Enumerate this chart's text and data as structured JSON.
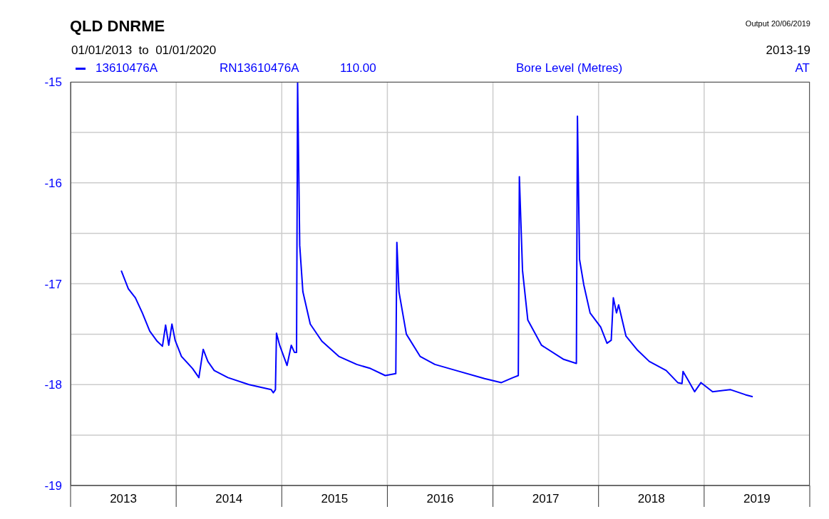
{
  "chart_data": {
    "type": "line",
    "title": "QLD DNRME",
    "subtitle": "01/01/2013  to  01/01/2020",
    "annotations": [
      "Output 20/06/2019",
      "2013-19",
      "RN13610476A",
      "110.00",
      "Bore Level (Metres)",
      "AT"
    ],
    "x": [
      2013.48,
      2013.547,
      2013.614,
      2013.68,
      2013.75,
      2013.82,
      2013.87,
      2013.9,
      2013.93,
      2013.96,
      2013.99,
      2014.05,
      2014.155,
      2014.215,
      2014.256,
      2014.3,
      2014.36,
      2014.49,
      2014.69,
      2014.9,
      2014.92,
      2014.94,
      2014.95,
      2014.98,
      2015.05,
      2015.09,
      2015.12,
      2015.14,
      2015.15,
      2015.17,
      2015.2,
      2015.27,
      2015.38,
      2015.54,
      2015.71,
      2015.84,
      2015.98,
      2016.08,
      2016.09,
      2016.11,
      2016.18,
      2016.31,
      2016.45,
      2016.65,
      2016.92,
      2017.08,
      2017.19,
      2017.24,
      2017.25,
      2017.28,
      2017.33,
      2017.46,
      2017.67,
      2017.79,
      2017.8,
      2017.82,
      2017.86,
      2017.92,
      2018.02,
      2018.08,
      2018.12,
      2018.14,
      2018.17,
      2018.19,
      2018.26,
      2018.37,
      2018.48,
      2018.64,
      2018.75,
      2018.79,
      2018.8,
      2018.85,
      2018.91,
      2018.97,
      2019.08,
      2019.25,
      2019.39,
      2019.46
    ],
    "series": [
      {
        "name": "13610476A",
        "color": "#0000ff",
        "values": [
          -16.87,
          -17.05,
          -17.14,
          -17.29,
          -17.47,
          -17.57,
          -17.62,
          -17.41,
          -17.61,
          -17.4,
          -17.56,
          -17.72,
          -17.84,
          -17.93,
          -17.65,
          -17.77,
          -17.86,
          -17.93,
          -18.0,
          -18.05,
          -18.08,
          -18.05,
          -17.49,
          -17.61,
          -17.81,
          -17.61,
          -17.68,
          -17.68,
          -15.0,
          -16.62,
          -17.08,
          -17.4,
          -17.57,
          -17.72,
          -17.8,
          -17.84,
          -17.91,
          -17.89,
          -16.59,
          -17.08,
          -17.5,
          -17.72,
          -17.8,
          -17.86,
          -17.94,
          -17.98,
          -17.93,
          -17.91,
          -15.94,
          -16.87,
          -17.36,
          -17.61,
          -17.75,
          -17.79,
          -15.34,
          -16.76,
          -17.01,
          -17.29,
          -17.43,
          -17.59,
          -17.56,
          -17.14,
          -17.29,
          -17.21,
          -17.52,
          -17.66,
          -17.77,
          -17.86,
          -17.98,
          -17.99,
          -17.87,
          -17.96,
          -18.07,
          -17.98,
          -18.07,
          -18.05,
          -18.1,
          -18.12
        ]
      }
    ],
    "xlim": [
      2013,
      2020
    ],
    "xticks": [
      {
        "value": 2013,
        "label": null
      },
      {
        "value": 2013.5,
        "label": "2013"
      },
      {
        "value": 2014,
        "label": null
      },
      {
        "value": 2014.5,
        "label": "2014"
      },
      {
        "value": 2015,
        "label": null
      },
      {
        "value": 2015.5,
        "label": "2015"
      },
      {
        "value": 2016,
        "label": null
      },
      {
        "value": 2016.5,
        "label": "2016"
      },
      {
        "value": 2017,
        "label": null
      },
      {
        "value": 2017.5,
        "label": "2017"
      },
      {
        "value": 2018,
        "label": null
      },
      {
        "value": 2018.5,
        "label": "2018"
      },
      {
        "value": 2019,
        "label": null
      },
      {
        "value": 2019.5,
        "label": "2019"
      },
      {
        "value": 2020,
        "label": null
      }
    ],
    "ylim": [
      -19,
      -15
    ],
    "yticks": [
      -19,
      {
        "value": -18.5,
        "label": null
      },
      -18,
      {
        "value": -17.5,
        "label": null
      },
      -17,
      {
        "value": -16.5,
        "label": null
      },
      -16,
      {
        "value": -15.5,
        "label": null
      },
      -15
    ],
    "grid": true,
    "legend": "top left",
    "marker": "none",
    "line_style": "solid"
  }
}
